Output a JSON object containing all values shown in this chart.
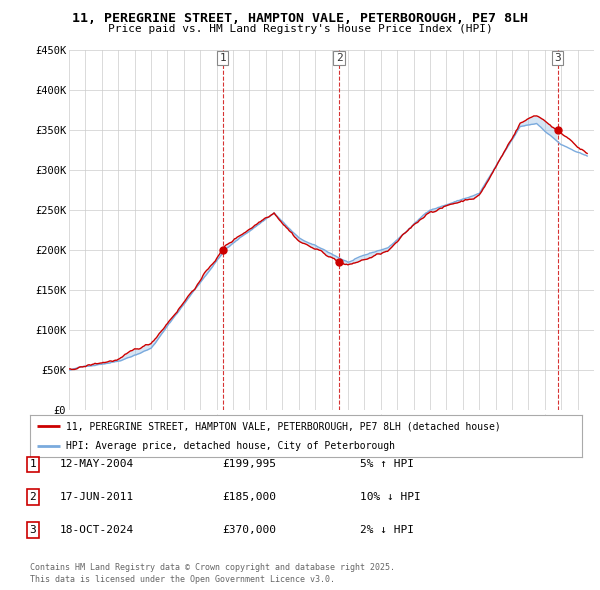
{
  "title": "11, PEREGRINE STREET, HAMPTON VALE, PETERBOROUGH, PE7 8LH",
  "subtitle": "Price paid vs. HM Land Registry's House Price Index (HPI)",
  "background_color": "#ffffff",
  "plot_bg_color": "#ffffff",
  "grid_color": "#cccccc",
  "hpi_color": "#7aaadd",
  "price_color": "#cc0000",
  "ylabel_ticks": [
    "£0",
    "£50K",
    "£100K",
    "£150K",
    "£200K",
    "£250K",
    "£300K",
    "£350K",
    "£400K",
    "£450K"
  ],
  "ytick_values": [
    0,
    50000,
    100000,
    150000,
    200000,
    250000,
    300000,
    350000,
    400000,
    450000
  ],
  "xstart": 1995,
  "xend": 2027,
  "transactions": [
    {
      "num": 1,
      "date": "12-MAY-2004",
      "price": 199995,
      "pct": "5%",
      "dir": "↑",
      "x": 2004.37
    },
    {
      "num": 2,
      "date": "17-JUN-2011",
      "price": 185000,
      "pct": "10%",
      "dir": "↓",
      "x": 2011.46
    },
    {
      "num": 3,
      "date": "18-OCT-2024",
      "price": 370000,
      "pct": "2%",
      "dir": "↓",
      "x": 2024.79
    }
  ],
  "legend_line1": "11, PEREGRINE STREET, HAMPTON VALE, PETERBOROUGH, PE7 8LH (detached house)",
  "legend_line2": "HPI: Average price, detached house, City of Peterborough",
  "footer_line1": "Contains HM Land Registry data © Crown copyright and database right 2025.",
  "footer_line2": "This data is licensed under the Open Government Licence v3.0."
}
